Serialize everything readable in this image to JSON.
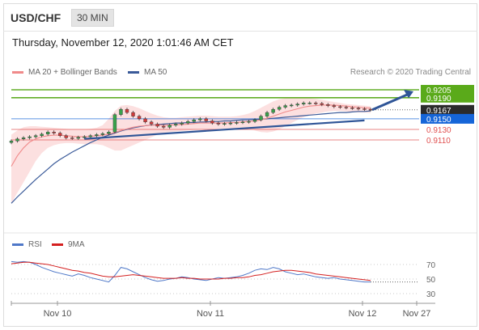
{
  "header": {
    "pair": "USD/CHF",
    "timeframe": "30 MIN"
  },
  "datetime": "Thursday, November 12, 2020 1:01:46 AM CET",
  "legend": {
    "ma20": {
      "label": "MA 20 + Bollinger Bands",
      "color": "#f08a8a"
    },
    "ma50": {
      "label": "MA 50",
      "color": "#3a5a99"
    },
    "credit": "Research © 2020 Trading Central"
  },
  "rsi_legend": {
    "rsi": {
      "label": "RSI",
      "color": "#4f78c8"
    },
    "ma9": {
      "label": "9MA",
      "color": "#d42020"
    }
  },
  "chart_data": [
    {
      "type": "line",
      "title": "",
      "y_axis_side": "right",
      "levels": [
        {
          "label": "0.9205",
          "value": 0.9205,
          "kind": "resistance",
          "color": "#5aaa1a"
        },
        {
          "label": "0.9190",
          "value": 0.919,
          "kind": "resistance",
          "color": "#5aaa1a"
        },
        {
          "label": "0.9167",
          "value": 0.9167,
          "kind": "last",
          "color": "#2b2b2b"
        },
        {
          "label": "0.9150",
          "value": 0.915,
          "kind": "pivot",
          "color": "#1565d8"
        },
        {
          "label": "0.9130",
          "value": 0.913,
          "kind": "support",
          "color": "#e05050"
        },
        {
          "label": "0.9110",
          "value": 0.911,
          "kind": "support",
          "color": "#e05050"
        }
      ],
      "x_ticks": [
        "Nov 10",
        "Nov 11",
        "Nov 12",
        "Nov 27"
      ],
      "price_series": [
        0.9108,
        0.9112,
        0.9114,
        0.9116,
        0.9118,
        0.9121,
        0.9125,
        0.9123,
        0.9118,
        0.9114,
        0.9113,
        0.9115,
        0.9116,
        0.9118,
        0.912,
        0.9122,
        0.9125,
        0.9158,
        0.9168,
        0.9162,
        0.9155,
        0.915,
        0.9144,
        0.914,
        0.9136,
        0.9134,
        0.9138,
        0.914,
        0.9142,
        0.9145,
        0.9148,
        0.915,
        0.9146,
        0.9142,
        0.914,
        0.9141,
        0.9142,
        0.9143,
        0.9144,
        0.9145,
        0.9148,
        0.9155,
        0.9162,
        0.9168,
        0.9172,
        0.9175,
        0.9176,
        0.9178,
        0.918,
        0.918,
        0.9179,
        0.9177,
        0.9175,
        0.9173,
        0.9172,
        0.9171,
        0.917,
        0.9169,
        0.9168,
        0.9167
      ],
      "ma50_series": [
        0.899,
        0.9002,
        0.9013,
        0.9024,
        0.9035,
        0.9045,
        0.9055,
        0.9065,
        0.9073,
        0.908,
        0.9087,
        0.9093,
        0.9099,
        0.9105,
        0.911,
        0.9115,
        0.9119,
        0.9123,
        0.9127,
        0.913,
        0.9133,
        0.9135,
        0.9137,
        0.9138,
        0.9139,
        0.914,
        0.9141,
        0.9142,
        0.9142,
        0.9143,
        0.9143,
        0.9144,
        0.9144,
        0.9145,
        0.9145,
        0.9146,
        0.9146,
        0.9147,
        0.9148,
        0.9148,
        0.9149,
        0.9149,
        0.915,
        0.9151,
        0.9152,
        0.9153,
        0.9154,
        0.9155,
        0.9156,
        0.9157,
        0.9158,
        0.9159,
        0.916,
        0.9161,
        0.9162,
        0.9162,
        0.9163,
        0.9164,
        0.9164,
        0.9165
      ],
      "ma20_series": [
        0.906,
        0.908,
        0.9095,
        0.9106,
        0.9112,
        0.9116,
        0.9118,
        0.9119,
        0.9119,
        0.9118,
        0.9117,
        0.9116,
        0.9116,
        0.9117,
        0.9118,
        0.9119,
        0.9121,
        0.9124,
        0.9128,
        0.9131,
        0.9134,
        0.9136,
        0.9137,
        0.9138,
        0.9138,
        0.9138,
        0.9138,
        0.9139,
        0.9139,
        0.914,
        0.9141,
        0.9142,
        0.9142,
        0.9142,
        0.9142,
        0.9142,
        0.9143,
        0.9143,
        0.9144,
        0.9145,
        0.9146,
        0.9148,
        0.9151,
        0.9155,
        0.9159,
        0.9163,
        0.9166,
        0.9169,
        0.9172,
        0.9174,
        0.9175,
        0.9176,
        0.9176,
        0.9176,
        0.9175,
        0.9174,
        0.9173,
        0.9172,
        0.9171,
        0.917
      ],
      "bollinger_upper": [
        0.912,
        0.9128,
        0.9134,
        0.9136,
        0.9136,
        0.9135,
        0.9134,
        0.9133,
        0.9132,
        0.9131,
        0.913,
        0.913,
        0.913,
        0.9131,
        0.9133,
        0.9138,
        0.915,
        0.9165,
        0.9175,
        0.9176,
        0.9174,
        0.917,
        0.9165,
        0.916,
        0.9156,
        0.9153,
        0.9152,
        0.9152,
        0.9153,
        0.9154,
        0.9155,
        0.9156,
        0.9156,
        0.9155,
        0.9154,
        0.9154,
        0.9154,
        0.9155,
        0.9157,
        0.916,
        0.9165,
        0.9171,
        0.9177,
        0.9183,
        0.9187,
        0.9189,
        0.919,
        0.919,
        0.919,
        0.9189,
        0.9188,
        0.9186,
        0.9184,
        0.9182,
        0.918,
        0.9178,
        0.9177,
        0.9176,
        0.9175,
        0.9174
      ],
      "bollinger_lower": [
        0.899,
        0.901,
        0.903,
        0.905,
        0.907,
        0.9085,
        0.9095,
        0.91,
        0.9103,
        0.9104,
        0.9104,
        0.9103,
        0.9102,
        0.9102,
        0.9102,
        0.91,
        0.9095,
        0.909,
        0.909,
        0.9095,
        0.91,
        0.9105,
        0.911,
        0.9115,
        0.912,
        0.9123,
        0.9125,
        0.9126,
        0.9127,
        0.9128,
        0.9129,
        0.913,
        0.913,
        0.913,
        0.9131,
        0.9131,
        0.9132,
        0.9132,
        0.9132,
        0.9131,
        0.9128,
        0.9125,
        0.9124,
        0.9126,
        0.913,
        0.9136,
        0.9142,
        0.9148,
        0.9153,
        0.9157,
        0.916,
        0.9162,
        0.9164,
        0.9165,
        0.9165,
        0.9164,
        0.9163,
        0.9162,
        0.9162,
        0.9161
      ],
      "trendline": {
        "start_index": 12,
        "start": 0.9112,
        "end_index": 58,
        "end": 0.9147
      }
    },
    {
      "type": "line",
      "title": "",
      "ylim": [
        30,
        70
      ],
      "y_ticks": [
        "70",
        "50",
        "30"
      ],
      "rsi_series": [
        74,
        73,
        74,
        73,
        70,
        66,
        63,
        60,
        58,
        56,
        54,
        57,
        55,
        52,
        50,
        48,
        46,
        55,
        66,
        64,
        60,
        56,
        52,
        49,
        47,
        48,
        50,
        51,
        53,
        52,
        50,
        49,
        48,
        50,
        52,
        51,
        52,
        53,
        55,
        58,
        62,
        64,
        63,
        66,
        64,
        60,
        58,
        56,
        57,
        55,
        53,
        52,
        51,
        52,
        50,
        49,
        48,
        47,
        46,
        46
      ],
      "ma9_series": [
        71,
        72,
        73,
        73,
        72,
        71,
        70,
        68,
        66,
        64,
        62,
        61,
        59,
        58,
        56,
        54,
        53,
        53,
        54,
        55,
        56,
        55,
        54,
        53,
        52,
        51,
        51,
        51,
        52,
        51,
        51,
        50,
        50,
        50,
        50,
        51,
        51,
        52,
        52,
        53,
        55,
        56,
        58,
        60,
        61,
        62,
        62,
        61,
        60,
        59,
        57,
        56,
        55,
        54,
        53,
        52,
        51,
        50,
        49,
        48
      ]
    }
  ]
}
